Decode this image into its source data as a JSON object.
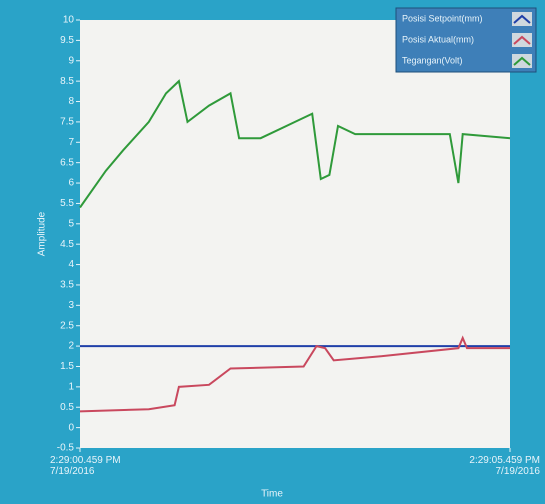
{
  "chart_data": {
    "type": "line",
    "xlabel": "Time",
    "ylabel": "Amplitude",
    "xlim": [
      0,
      5
    ],
    "ylim": [
      -0.5,
      10
    ],
    "xticks": [
      {
        "value": 0,
        "label": "2:29:00.459 PM\n7/19/2016"
      },
      {
        "value": 5,
        "label": "2:29:05.459 PM\n7/19/2016"
      }
    ],
    "yticks": [
      -0.5,
      0,
      0.5,
      1,
      1.5,
      2,
      2.5,
      3,
      3.5,
      4,
      4.5,
      5,
      5.5,
      6,
      6.5,
      7,
      7.5,
      8,
      8.5,
      9,
      9.5,
      10
    ],
    "legend": "upper right",
    "series": [
      {
        "name": "Posisi Setpoint(mm)",
        "color": "#1f3fa8",
        "x": [
          0,
          5
        ],
        "values": [
          2,
          2
        ]
      },
      {
        "name": "Posisi Aktual(mm)",
        "color": "#c9485e",
        "x": [
          0,
          0.8,
          1.1,
          1.15,
          1.5,
          1.75,
          2.6,
          2.75,
          2.85,
          2.95,
          3.5,
          4.4,
          4.45,
          4.5,
          5
        ],
        "values": [
          0.4,
          0.45,
          0.55,
          1.0,
          1.05,
          1.45,
          1.5,
          2.0,
          1.95,
          1.65,
          1.75,
          1.95,
          2.2,
          1.95,
          1.95
        ]
      },
      {
        "name": "Tegangan(Volt)",
        "color": "#2f9a3a",
        "x": [
          0,
          0.3,
          0.5,
          0.8,
          1.0,
          1.15,
          1.25,
          1.5,
          1.75,
          1.85,
          2.1,
          2.5,
          2.7,
          2.8,
          2.9,
          3.0,
          3.2,
          4.3,
          4.4,
          4.45,
          5.0
        ],
        "values": [
          5.4,
          6.3,
          6.8,
          7.5,
          8.2,
          8.5,
          7.5,
          7.9,
          8.2,
          7.1,
          7.1,
          7.5,
          7.7,
          6.1,
          6.2,
          7.4,
          7.2,
          7.2,
          6.0,
          7.2,
          7.1
        ]
      }
    ]
  }
}
